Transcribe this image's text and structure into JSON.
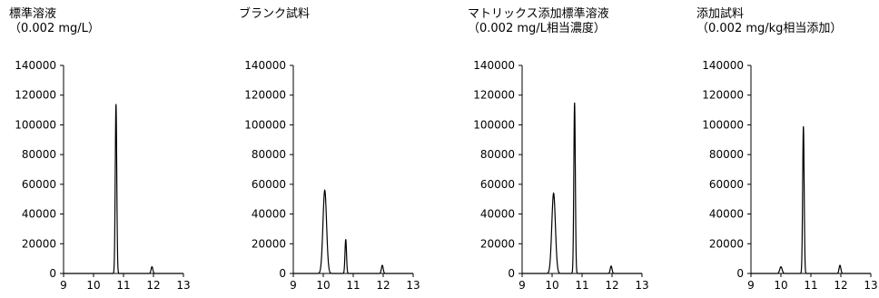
{
  "chart_data": [
    {
      "type": "line",
      "title": [
        "標準溶液",
        "（0.002 mg/L）"
      ],
      "xlim": [
        9,
        13
      ],
      "ylim": [
        0,
        140000
      ],
      "x_ticks": [
        9,
        10,
        11,
        12,
        13
      ],
      "y_ticks": [
        0,
        20000,
        40000,
        60000,
        80000,
        100000,
        120000,
        140000
      ],
      "grid": false,
      "series": [
        {
          "peaks": [
            {
              "x": 10.75,
              "y": 114000,
              "width": 0.025
            },
            {
              "x": 11.95,
              "y": 4500,
              "width": 0.03
            }
          ]
        }
      ]
    },
    {
      "type": "line",
      "title": [
        "ブランク試料"
      ],
      "xlim": [
        9,
        13
      ],
      "ylim": [
        0,
        140000
      ],
      "x_ticks": [
        9,
        10,
        11,
        12,
        13
      ],
      "y_ticks": [
        0,
        20000,
        40000,
        60000,
        80000,
        100000,
        120000,
        140000
      ],
      "grid": false,
      "series": [
        {
          "peaks": [
            {
              "x": 10.05,
              "y": 56000,
              "width": 0.06
            },
            {
              "x": 10.75,
              "y": 23000,
              "width": 0.025
            },
            {
              "x": 11.97,
              "y": 5500,
              "width": 0.03
            }
          ]
        }
      ]
    },
    {
      "type": "line",
      "title": [
        "マトリックス添加標準溶液",
        "（0.002 mg/L相当濃度）"
      ],
      "xlim": [
        9,
        13
      ],
      "ylim": [
        0,
        140000
      ],
      "x_ticks": [
        9,
        10,
        11,
        12,
        13
      ],
      "y_ticks": [
        0,
        20000,
        40000,
        60000,
        80000,
        100000,
        120000,
        140000
      ],
      "grid": false,
      "series": [
        {
          "peaks": [
            {
              "x": 10.05,
              "y": 54000,
              "width": 0.06
            },
            {
              "x": 10.75,
              "y": 115000,
              "width": 0.025
            },
            {
              "x": 11.97,
              "y": 5000,
              "width": 0.03
            }
          ]
        }
      ]
    },
    {
      "type": "line",
      "title": [
        "添加試料",
        "（0.002 mg/kg相当添加）"
      ],
      "xlim": [
        9,
        13
      ],
      "ylim": [
        0,
        140000
      ],
      "x_ticks": [
        9,
        10,
        11,
        12,
        13
      ],
      "y_ticks": [
        0,
        20000,
        40000,
        60000,
        80000,
        100000,
        120000,
        140000
      ],
      "grid": false,
      "series": [
        {
          "peaks": [
            {
              "x": 10.0,
              "y": 4500,
              "width": 0.04
            },
            {
              "x": 10.75,
              "y": 99000,
              "width": 0.025
            },
            {
              "x": 11.97,
              "y": 5500,
              "width": 0.03
            }
          ]
        }
      ]
    }
  ]
}
